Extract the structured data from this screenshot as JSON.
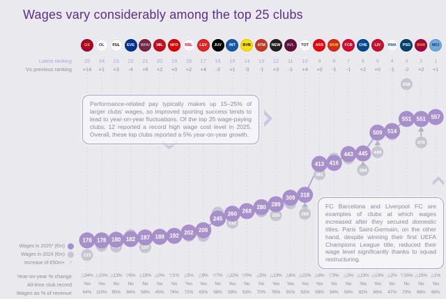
{
  "title": "Wages vary considerably among the top 25 clubs",
  "labels": {
    "latest_ranking": "Latest ranking",
    "vs_previous": "Vs previous ranking"
  },
  "legend": {
    "wages_2025": "Wages in 2025* (€m)",
    "wages_2024": "Wages in 2024 (€m)",
    "increase": "Increase of €50m+"
  },
  "annotations": {
    "box1": "Performance-related pay typically makes up 15–25% of larger clubs' wages, so improved sporting success tends to lead to year-on-year fluctuations. Of the top 25 wage-paying clubs, 12 reported a record high wage cost level in 2025. Overall, these top clubs reported a 5% year-on-year growth.",
    "box2": "FC Barcelona and Liverpool FC are examples of clubs at which wages increased after they secured domestic titles. Paris Saint-Germain, on the other hand, despite winning their first UEFA Champions League title, reduced their wage level significantly thanks to squad restructuring."
  },
  "table": {
    "yoy_label": "Year-on-year % change",
    "record_label": "All-time club record",
    "pct_label": "Wages as % of revenue"
  },
  "colors": {
    "background": "#e9e9ee",
    "accent_purple": "#5b2d8e",
    "bubble_2025": "#a78fcb",
    "bubble_2024": "#c6c6d0",
    "grid": "#cacad8",
    "note_text": "#8a87a3"
  },
  "chart_data": {
    "type": "scatter",
    "title": "Wages vary considerably among the top 25 clubs",
    "x_axis": "Clubs ordered by latest wage ranking, 25 (left) to 1 (right)",
    "y_unit": "€m",
    "grid": "vertical dashed per club column",
    "legend_position": "bottom-left",
    "series": [
      {
        "name": "Wages in 2025* (€m)",
        "color": "#a78fcb"
      },
      {
        "name": "Wages in 2024 (€m)",
        "color": "#c6c6d0"
      }
    ],
    "clubs": [
      {
        "abbr": "GS",
        "club": "Galatasaray",
        "latest_ranking": 25,
        "vs_previous": "+14",
        "wages_2025": 178,
        "wages_2024": 133,
        "yoy_change": "△34%",
        "all_time_record": "Yes",
        "wages_pct_revenue": "64%",
        "increase_50m_arrow": false,
        "logo_bg": "#a90432",
        "logo_fg": "#ffcd00"
      },
      {
        "abbr": "OL",
        "club": "Olympique Lyonnais",
        "latest_ranking": 24,
        "vs_previous": "+1",
        "wages_2025": 178,
        "wages_2024": 162,
        "yoy_change": "△10%",
        "all_time_record": "Yes",
        "wages_pct_revenue": "110%",
        "increase_50m_arrow": false,
        "logo_bg": "#ffffff",
        "logo_fg": "#1a3668"
      },
      {
        "abbr": "FUL",
        "club": "Fulham",
        "latest_ranking": 23,
        "vs_previous": "+3",
        "wages_2025": 180,
        "wages_2024": 159,
        "yoy_change": "△13%",
        "all_time_record": "No",
        "wages_pct_revenue": "85%",
        "increase_50m_arrow": false,
        "logo_bg": "#ffffff",
        "logo_fg": "#000000"
      },
      {
        "abbr": "EVE",
        "club": "Everton",
        "latest_ranking": 22,
        "vs_previous": "-4",
        "wages_2025": 182,
        "wages_2024": 194,
        "yoy_change": "▽6%",
        "all_time_record": "No",
        "wages_pct_revenue": "84%",
        "increase_50m_arrow": false,
        "logo_bg": "#003399",
        "logo_fg": "#ffffff"
      },
      {
        "abbr": "WHU",
        "club": "West Ham United",
        "latest_ranking": 21,
        "vs_previous": "+6",
        "wages_2025": 187,
        "wages_2024": 157,
        "yoy_change": "△19%",
        "all_time_record": "No",
        "wages_pct_revenue": "58%",
        "increase_50m_arrow": false,
        "logo_bg": "#7a263a",
        "logo_fg": "#9cc3e8"
      },
      {
        "abbr": "MIL",
        "club": "AC Milan",
        "latest_ranking": 20,
        "vs_previous": "+2",
        "wages_2025": 189,
        "wages_2024": 188,
        "yoy_change": "△0%",
        "all_time_record": "No",
        "wages_pct_revenue": "45%",
        "increase_50m_arrow": false,
        "logo_bg": "#c50d1f",
        "logo_fg": "#ffffff"
      },
      {
        "abbr": "NFO",
        "club": "Nottingham Forest",
        "latest_ranking": 19,
        "vs_previous": "+0",
        "wages_2025": 192,
        "wages_2024": 194,
        "yoy_change": "▽1%",
        "all_time_record": "No",
        "wages_pct_revenue": "74%",
        "increase_50m_arrow": false,
        "logo_bg": "#dd0000",
        "logo_fg": "#ffffff"
      },
      {
        "abbr": "RBL",
        "club": "RB Leipzig",
        "latest_ranking": 18,
        "vs_previous": "+2",
        "wages_2025": 202,
        "wages_2024": 192,
        "yoy_change": "△5%",
        "all_time_record": "Yes",
        "wages_pct_revenue": "72%",
        "increase_50m_arrow": false,
        "logo_bg": "#ffffff",
        "logo_fg": "#dd013f"
      },
      {
        "abbr": "LEV",
        "club": "Bayer Leverkusen",
        "latest_ranking": 17,
        "vs_previous": "+4",
        "wages_2025": 209,
        "wages_2024": 192,
        "yoy_change": "△9%",
        "all_time_record": "Yes",
        "wages_pct_revenue": "63%",
        "increase_50m_arrow": false,
        "logo_bg": "#e32221",
        "logo_fg": "#ffffff"
      },
      {
        "abbr": "JUV",
        "club": "Juventus",
        "latest_ranking": 16,
        "vs_previous": "-3",
        "wages_2025": 245,
        "wages_2024": 263,
        "yoy_change": "▽7%",
        "all_time_record": "No",
        "wages_pct_revenue": "58%",
        "increase_50m_arrow": false,
        "logo_bg": "#000000",
        "logo_fg": "#ffffff"
      },
      {
        "abbr": "INT",
        "club": "Inter Milan",
        "latest_ranking": 15,
        "vs_previous": "+1",
        "wages_2025": 260,
        "wages_2024": 232,
        "yoy_change": "△12%",
        "all_time_record": "Yes",
        "wages_pct_revenue": "59%",
        "increase_50m_arrow": false,
        "logo_bg": "#1559a8",
        "logo_fg": "#ffffff"
      },
      {
        "abbr": "BVB",
        "club": "Borussia Dortmund",
        "latest_ranking": 14,
        "vs_previous": "-3",
        "wages_2025": 268,
        "wages_2024": 269,
        "yoy_change": "▽0%",
        "all_time_record": "No",
        "wages_pct_revenue": "53%",
        "increase_50m_arrow": false,
        "logo_bg": "#fde100",
        "logo_fg": "#000000"
      },
      {
        "abbr": "ATM",
        "club": "Atlético de Madrid",
        "latest_ranking": 13,
        "vs_previous": "-1",
        "wages_2025": 280,
        "wages_2024": 267,
        "yoy_change": "△5%",
        "all_time_record": "No",
        "wages_pct_revenue": "70%",
        "increase_50m_arrow": false,
        "logo_bg": "#cb3524",
        "logo_fg": "#ffffff"
      },
      {
        "abbr": "NEW",
        "club": "Newcastle United",
        "latest_ranking": 12,
        "vs_previous": "+3",
        "wages_2025": 289,
        "wages_2024": 255,
        "yoy_change": "△13%",
        "all_time_record": "Yes",
        "wages_pct_revenue": "76%",
        "increase_50m_arrow": false,
        "logo_bg": "#241f20",
        "logo_fg": "#ffffff"
      },
      {
        "abbr": "AVL",
        "club": "Aston Villa",
        "latest_ranking": 11,
        "vs_previous": "-1",
        "wages_2025": 309,
        "wages_2024": 292,
        "yoy_change": "△6%",
        "all_time_record": "Yes",
        "wages_pct_revenue": "91%",
        "increase_50m_arrow": false,
        "logo_bg": "#670e36",
        "logo_fg": "#95bfe5"
      },
      {
        "abbr": "TOT",
        "club": "Tottenham Hotspur",
        "latest_ranking": 10,
        "vs_previous": "+4",
        "wages_2025": 318,
        "wages_2024": 260,
        "yoy_change": "△22%",
        "all_time_record": "Yes",
        "wages_pct_revenue": "52%",
        "increase_50m_arrow": true,
        "logo_bg": "#ffffff",
        "logo_fg": "#132257"
      },
      {
        "abbr": "ARS",
        "club": "Arsenal",
        "latest_ranking": 9,
        "vs_previous": "+0",
        "wages_2025": 413,
        "wages_2024": 381,
        "yoy_change": "△8%",
        "all_time_record": "Yes",
        "wages_pct_revenue": "58%",
        "increase_50m_arrow": false,
        "logo_bg": "#ef0107",
        "logo_fg": "#ffffff"
      },
      {
        "abbr": "MUN",
        "club": "Manchester United",
        "latest_ranking": 8,
        "vs_previous": "-1",
        "wages_2025": 416,
        "wages_2024": 429,
        "yoy_change": "▽3%",
        "all_time_record": "No",
        "wages_pct_revenue": "54%",
        "increase_50m_arrow": false,
        "logo_bg": "#da291c",
        "logo_fg": "#fbe122"
      },
      {
        "abbr": "FCB",
        "club": "Bayern Munich",
        "latest_ranking": 7,
        "vs_previous": "-1",
        "wages_2025": 443,
        "wages_2024": 430,
        "yoy_change": "△3%",
        "all_time_record": "No",
        "wages_pct_revenue": "58%",
        "increase_50m_arrow": false,
        "logo_bg": "#dc052d",
        "logo_fg": "#ffffff"
      },
      {
        "abbr": "CHE",
        "club": "Chelsea",
        "latest_ranking": 6,
        "vs_previous": "+2",
        "wages_2025": 445,
        "wages_2024": 394,
        "yoy_change": "△13%",
        "all_time_record": "Yes",
        "wages_pct_revenue": "82%",
        "increase_50m_arrow": true,
        "logo_bg": "#034694",
        "logo_fg": "#ffffff"
      },
      {
        "abbr": "LIV",
        "club": "Liverpool",
        "latest_ranking": 5,
        "vs_previous": "+0",
        "wages_2025": 509,
        "wages_2024": 449,
        "yoy_change": "△13%",
        "all_time_record": "Yes",
        "wages_pct_revenue": "66%",
        "increase_50m_arrow": true,
        "logo_bg": "#c8102e",
        "logo_fg": "#ffffff"
      },
      {
        "abbr": "RMA",
        "club": "Real Madrid",
        "latest_ranking": 4,
        "vs_previous": "-1",
        "wages_2025": 514,
        "wages_2024": 504,
        "yoy_change": "△2%",
        "all_time_record": "No",
        "wages_pct_revenue": "47%",
        "increase_50m_arrow": false,
        "logo_bg": "#ffffff",
        "logo_fg": "#00529f"
      },
      {
        "abbr": "PSG",
        "club": "Paris Saint-Germain",
        "latest_ranking": 3,
        "vs_previous": "-2",
        "wages_2025": 551,
        "wages_2024": 658,
        "yoy_change": "▽16%",
        "all_time_record": "No",
        "wages_pct_revenue": "70%",
        "increase_50m_arrow": false,
        "logo_bg": "#004170",
        "logo_fg": "#ffffff"
      },
      {
        "abbr": "BAR",
        "club": "FC Barcelona",
        "latest_ranking": 2,
        "vs_previous": "+2",
        "wages_2025": 551,
        "wages_2024": 479,
        "yoy_change": "△15%",
        "all_time_record": "No",
        "wages_pct_revenue": "66%",
        "increase_50m_arrow": true,
        "logo_bg": "#a50044",
        "logo_fg": "#edbb00"
      },
      {
        "abbr": "MCI",
        "club": "Manchester City",
        "latest_ranking": 1,
        "vs_previous": "+1",
        "wages_2025": 557,
        "wages_2024": 550,
        "yoy_change": "△1%",
        "all_time_record": "Yes",
        "wages_pct_revenue": "66%",
        "increase_50m_arrow": false,
        "logo_bg": "#6cabdd",
        "logo_fg": "#1c2c5b"
      }
    ]
  }
}
